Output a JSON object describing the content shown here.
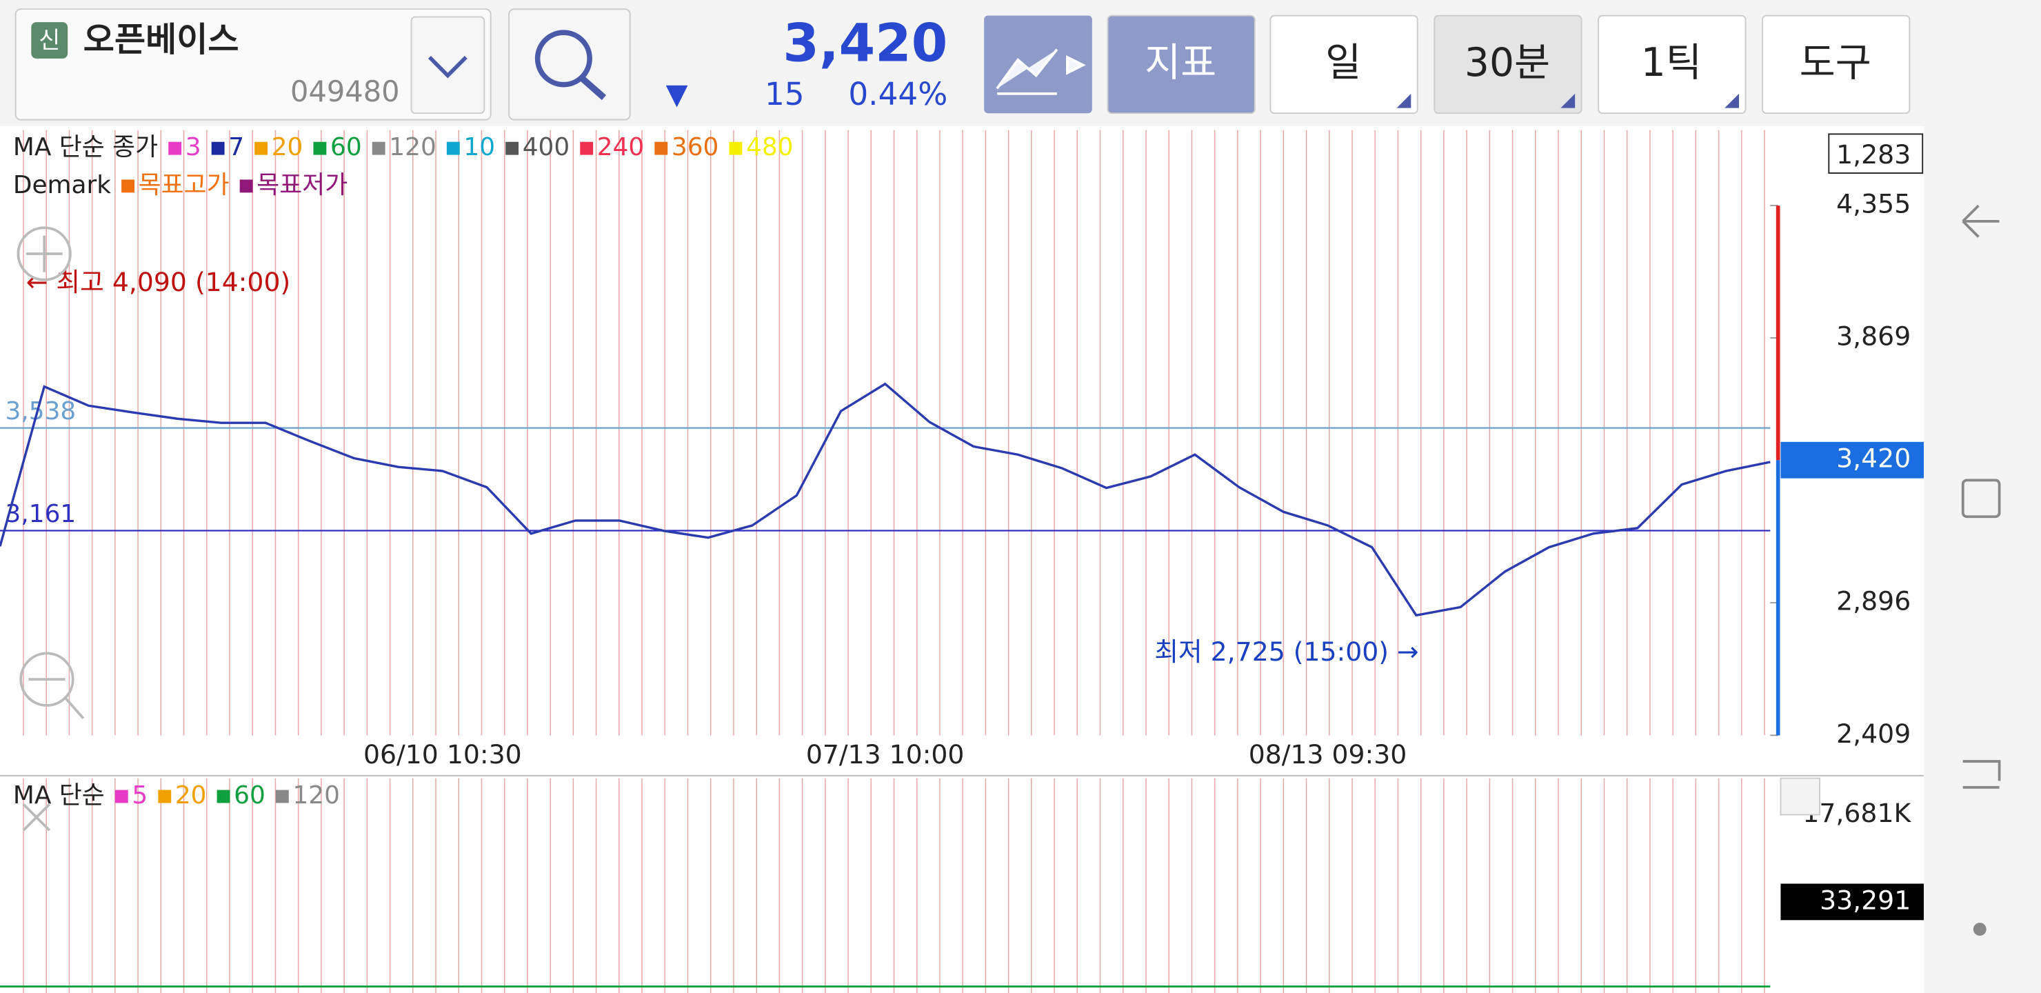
{
  "header": {
    "badge": "신",
    "name": "오픈베이스",
    "code": "049480"
  },
  "quote": {
    "price": "3,420",
    "arrow": "▼",
    "change": "15",
    "change_pct": "0.44%"
  },
  "toolbar": {
    "buttons": [
      "지표",
      "일",
      "30분",
      "1틱",
      "도구"
    ]
  },
  "chart_data": {
    "type": "line",
    "legend_title": "MA 단순 종가",
    "ma_legend": [
      {
        "name": "3",
        "color": "#e83cc8"
      },
      {
        "name": "7",
        "color": "#1a2aa0"
      },
      {
        "name": "20",
        "color": "#f0a000"
      },
      {
        "name": "60",
        "color": "#10a040"
      },
      {
        "name": "120",
        "color": "#888888"
      },
      {
        "name": "10",
        "color": "#10a8d0"
      },
      {
        "name": "400",
        "color": "#555555"
      },
      {
        "name": "240",
        "color": "#f03050"
      },
      {
        "name": "360",
        "color": "#e87010"
      },
      {
        "name": "480",
        "color": "#f4f000"
      }
    ],
    "demark_title": "Demark",
    "demark_legend": [
      {
        "name": "목표고가",
        "color": "#f07010"
      },
      {
        "name": "목표저가",
        "color": "#901878"
      }
    ],
    "annotations": [
      "← 최고 4,090 (14:00)",
      "최저 2,725 (15:00) →"
    ],
    "categories": [
      null,
      null,
      null,
      null,
      null,
      null,
      null,
      null,
      null,
      null,
      "06/10 10:30",
      null,
      null,
      null,
      null,
      null,
      null,
      null,
      null,
      null,
      "07/13 10:00",
      null,
      null,
      null,
      null,
      null,
      null,
      null,
      null,
      null,
      "08/13 09:30",
      null,
      null,
      null,
      null,
      null,
      null,
      null,
      null,
      null,
      null
    ],
    "values": [
      3103,
      3690,
      3620,
      3595,
      3572,
      3557,
      3557,
      3490,
      3427,
      3395,
      3380,
      3320,
      3150,
      3198,
      3198,
      3160,
      3135,
      3180,
      3290,
      3600,
      3700,
      3560,
      3470,
      3440,
      3390,
      3318,
      3360,
      3440,
      3320,
      3230,
      3180,
      3100,
      2850,
      2880,
      3010,
      3100,
      3150,
      3170,
      3330,
      3380,
      3413
    ],
    "color": "#2a3ab0",
    "ylim": [
      2409,
      4632
    ],
    "yticks": [
      {
        "value": 4355,
        "label": "4,355"
      },
      {
        "value": 3869,
        "label": "3,869"
      },
      {
        "value": 2896,
        "label": "2,896"
      },
      {
        "value": 2409,
        "label": "2,409"
      }
    ],
    "reference_lines": [
      {
        "value": 3538,
        "label": "3,538",
        "color": "#6aa0d0"
      },
      {
        "value": 3161,
        "label": "3,161",
        "color": "#3030c0"
      }
    ],
    "current": {
      "value": 3420,
      "label": "3,420"
    },
    "top_label": "1,283"
  },
  "volume_chart": {
    "legend_title": "MA 단순",
    "legend": [
      {
        "name": "5",
        "color": "#e83cc8"
      },
      {
        "name": "20",
        "color": "#f0a000"
      },
      {
        "name": "60",
        "color": "#10a040"
      },
      {
        "name": "120",
        "color": "#888888"
      }
    ],
    "top_label": "17,681K",
    "current_label": "33,291"
  }
}
